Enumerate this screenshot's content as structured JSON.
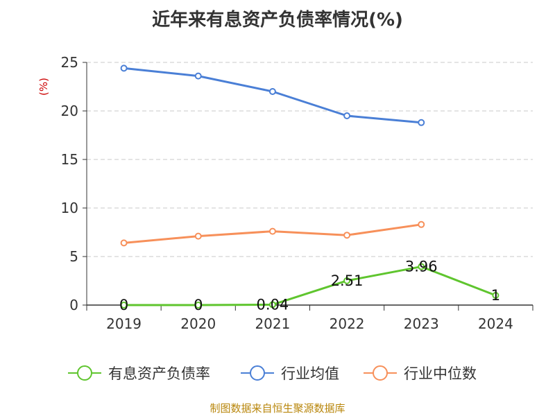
{
  "chart_data": {
    "type": "line",
    "title": "近年来有息资产负债率情况(%)",
    "ylabel": "(%)",
    "categories": [
      "2019",
      "2020",
      "2021",
      "2022",
      "2023",
      "2024"
    ],
    "ylim": [
      0,
      25
    ],
    "yticks": [
      "0",
      "5",
      "10",
      "15",
      "20",
      "25"
    ],
    "grid": true,
    "legend_position": "bottom",
    "series": [
      {
        "name": "有息资产负债率",
        "color": "#5fc52e",
        "values": [
          0,
          0,
          0.04,
          2.51,
          3.96,
          1
        ],
        "labels": [
          "0",
          "0",
          "0.04",
          "2.51",
          "3.96",
          "1"
        ]
      },
      {
        "name": "行业均值",
        "color": "#4a7fd6",
        "values": [
          24.4,
          23.6,
          22.0,
          19.5,
          18.8,
          null
        ]
      },
      {
        "name": "行业中位数",
        "color": "#f7905a",
        "values": [
          6.4,
          7.1,
          7.6,
          7.2,
          8.3,
          null
        ]
      }
    ]
  },
  "source": "制图数据来自恒生聚源数据库"
}
